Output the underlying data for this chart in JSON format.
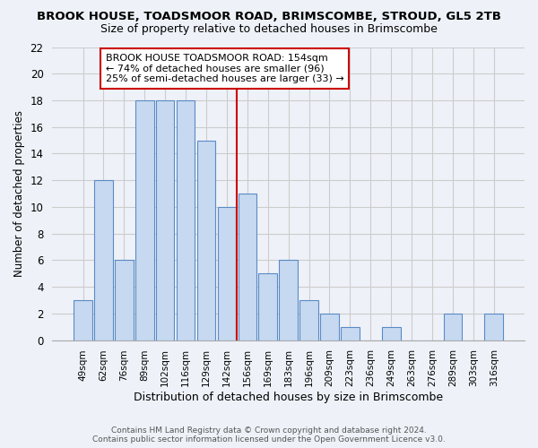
{
  "title": "BROOK HOUSE, TOADSMOOR ROAD, BRIMSCOMBE, STROUD, GL5 2TB",
  "subtitle": "Size of property relative to detached houses in Brimscombe",
  "xlabel": "Distribution of detached houses by size in Brimscombe",
  "ylabel": "Number of detached properties",
  "bar_labels": [
    "49sqm",
    "62sqm",
    "76sqm",
    "89sqm",
    "102sqm",
    "116sqm",
    "129sqm",
    "142sqm",
    "156sqm",
    "169sqm",
    "183sqm",
    "196sqm",
    "209sqm",
    "223sqm",
    "236sqm",
    "249sqm",
    "263sqm",
    "276sqm",
    "289sqm",
    "303sqm",
    "316sqm"
  ],
  "bar_values": [
    3,
    12,
    6,
    18,
    18,
    18,
    15,
    10,
    11,
    5,
    6,
    3,
    2,
    1,
    0,
    1,
    0,
    0,
    2,
    0,
    2
  ],
  "bar_color": "#c6d9f0",
  "bar_edge_color": "#5a8ac6",
  "vline_pos": 7.5,
  "vline_color": "#cc0000",
  "ylim": [
    0,
    22
  ],
  "yticks": [
    0,
    2,
    4,
    6,
    8,
    10,
    12,
    14,
    16,
    18,
    20,
    22
  ],
  "annotation_title": "BROOK HOUSE TOADSMOOR ROAD: 154sqm",
  "annotation_line1": "← 74% of detached houses are smaller (96)",
  "annotation_line2": "25% of semi-detached houses are larger (33) →",
  "annotation_box_color": "#ffffff",
  "annotation_box_edge": "#cc0000",
  "footer1": "Contains HM Land Registry data © Crown copyright and database right 2024.",
  "footer2": "Contains public sector information licensed under the Open Government Licence v3.0.",
  "bg_color": "#eef2f8",
  "grid_color": "#cccccc"
}
